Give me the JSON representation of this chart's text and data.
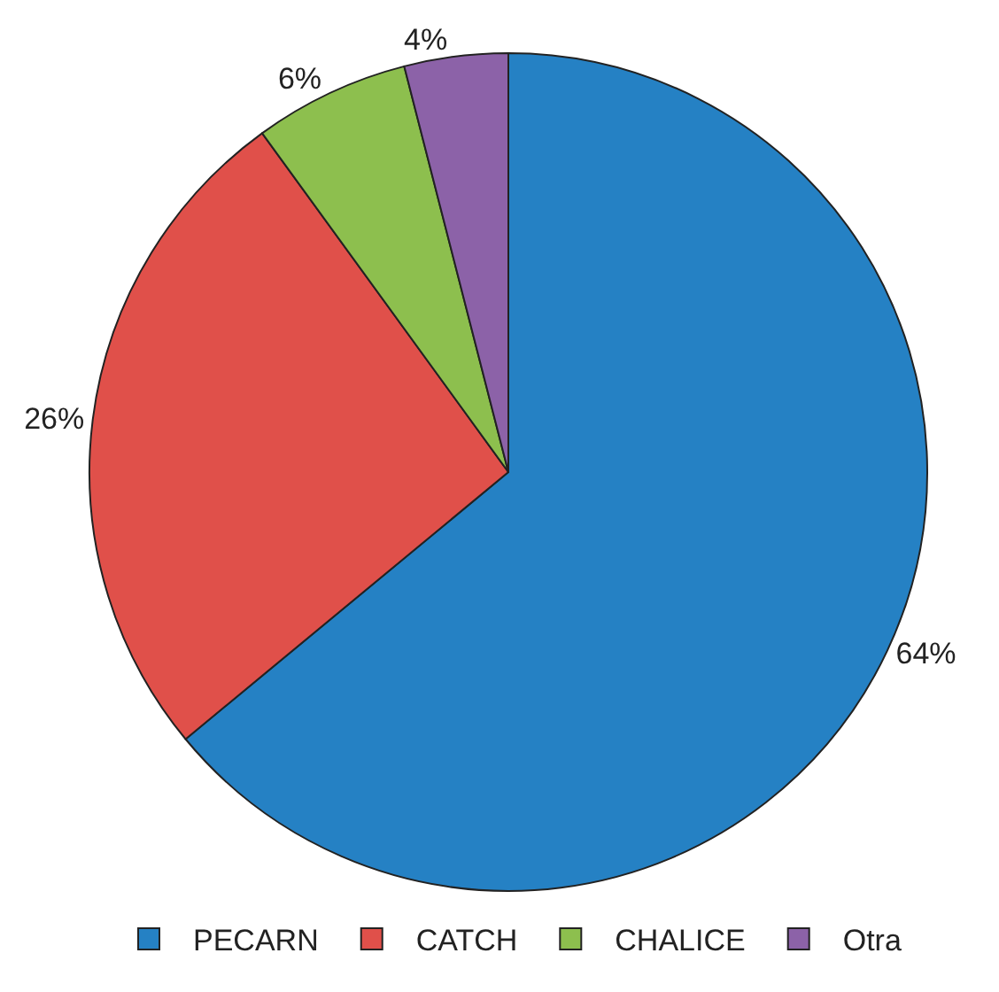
{
  "chart_data": {
    "type": "pie",
    "categories": [
      "PECARN",
      "CATCH",
      "CHALICE",
      "Otra"
    ],
    "values": [
      64,
      26,
      6,
      4
    ],
    "colors": [
      "#2581c4",
      "#e0504a",
      "#8dbf4e",
      "#8c62a8"
    ],
    "value_labels": [
      "64%",
      "26%",
      "6%",
      "4%"
    ],
    "legend": "bottom"
  }
}
